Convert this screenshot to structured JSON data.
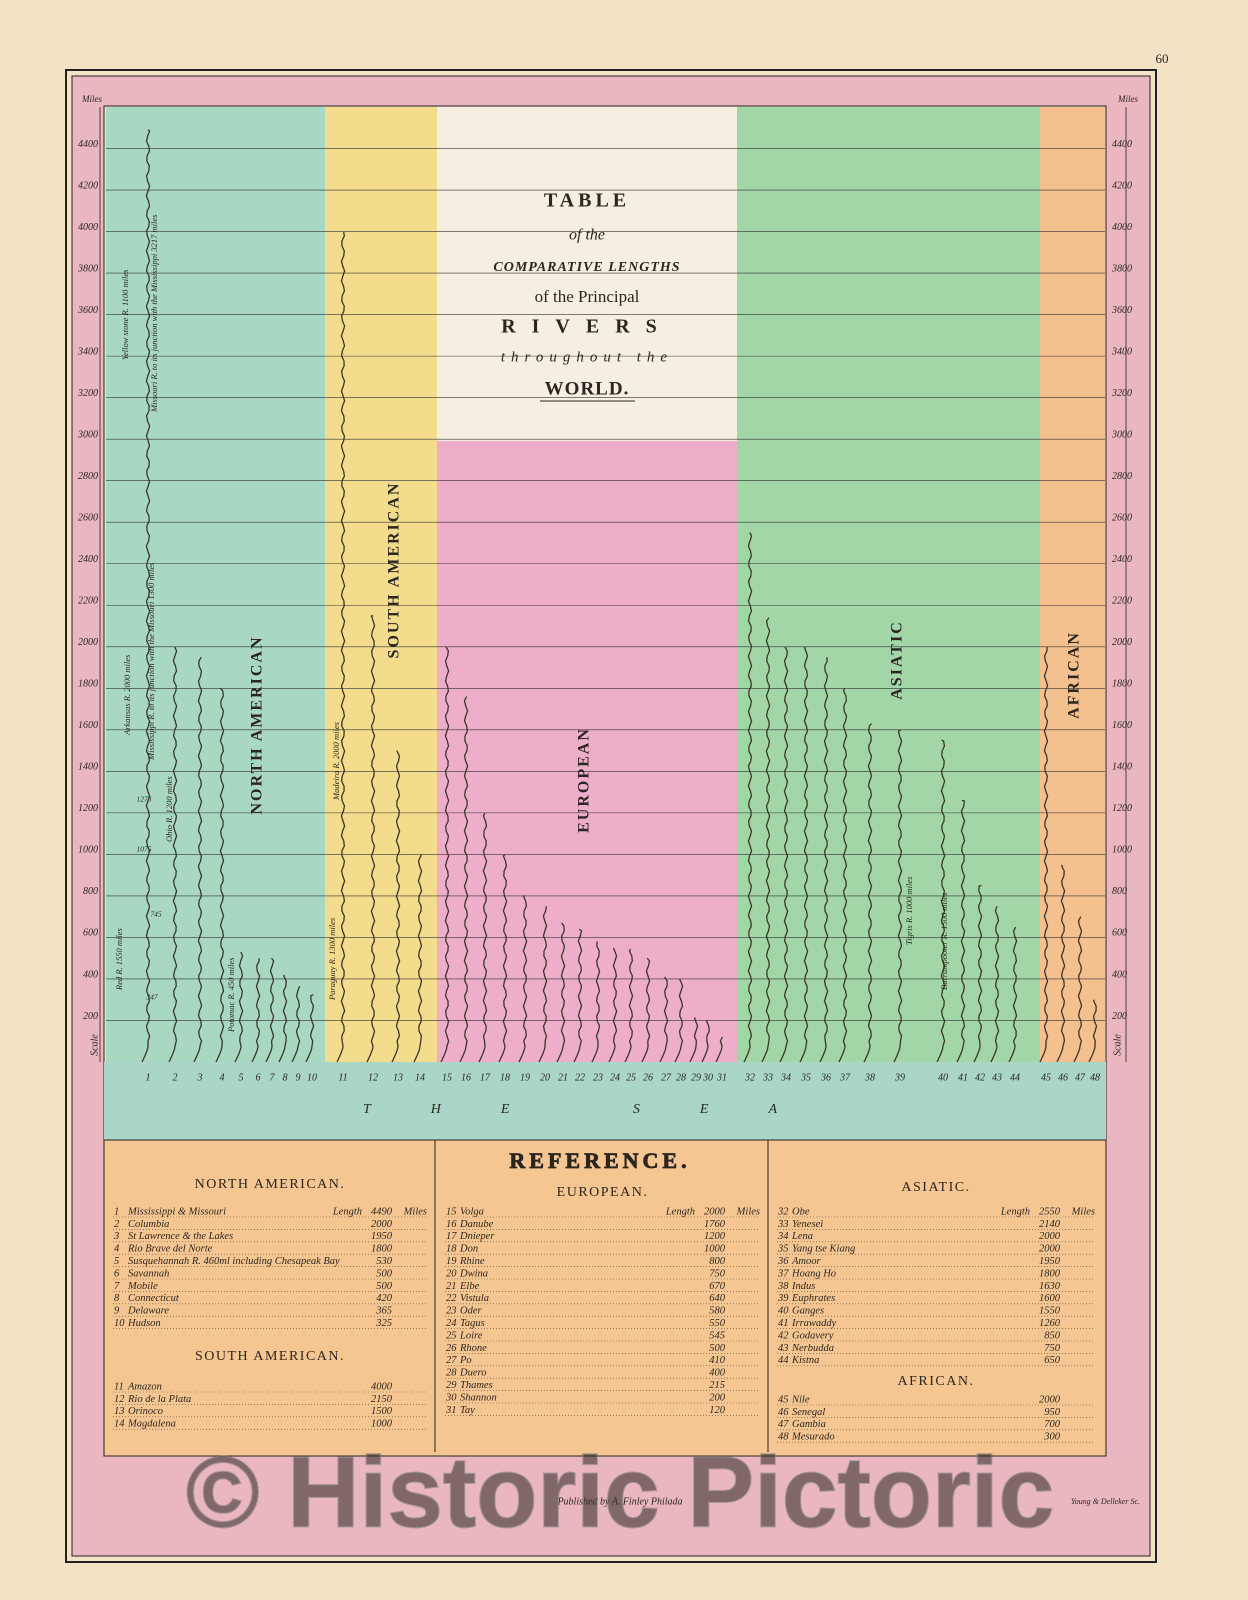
{
  "page_number": "60",
  "chart_data": {
    "type": "river",
    "title": [
      "TABLE",
      "of the",
      "COMPARATIVE LENGTHS",
      "of the Principal",
      "RIVERS",
      "throughout the",
      "WORLD."
    ],
    "y_unit": "Miles",
    "scale_label": "Scale",
    "sea_label": "THE SEA",
    "ylim": [
      0,
      4600
    ],
    "yticks": [
      200,
      400,
      600,
      800,
      1000,
      1200,
      1400,
      1600,
      1800,
      2000,
      2200,
      2400,
      2600,
      2800,
      3000,
      3200,
      3400,
      3600,
      3800,
      4000,
      4200,
      4400
    ],
    "grid": true,
    "series": [
      {
        "name": "NORTH AMERICAN",
        "reference_heading": "NORTH AMERICAN.",
        "color": "#a8d8c2",
        "categories": [
          "1",
          "2",
          "3",
          "4",
          "5",
          "6",
          "7",
          "8",
          "9",
          "10"
        ],
        "names": [
          "Mississippi & Missouri",
          "Columbia",
          "St Lawrence & the Lakes",
          "Rio Brave del Norte",
          "Susquehannah R. 460ml including Chesapeak Bay",
          "Savannah",
          "Mobile",
          "Connecticut",
          "Delaware",
          "Hudson"
        ],
        "values": [
          4490,
          2000,
          1950,
          1800,
          530,
          500,
          500,
          420,
          365,
          325
        ]
      },
      {
        "name": "SOUTH AMERICAN",
        "reference_heading": "SOUTH AMERICAN.",
        "color": "#f3dc8c",
        "categories": [
          "11",
          "12",
          "13",
          "14"
        ],
        "names": [
          "Amazon",
          "Rio de la Plata",
          "Orinoco",
          "Magdalena"
        ],
        "values": [
          4000,
          2150,
          1500,
          1000
        ]
      },
      {
        "name": "EUROPEAN",
        "reference_heading": "EUROPEAN.",
        "color": "#eeadc9",
        "categories": [
          "15",
          "16",
          "17",
          "18",
          "19",
          "20",
          "21",
          "22",
          "23",
          "24",
          "25",
          "26",
          "27",
          "28",
          "29",
          "30",
          "31"
        ],
        "names": [
          "Volga",
          "Danube",
          "Dnieper",
          "Don",
          "Rhine",
          "Dwina",
          "Elbe",
          "Vistula",
          "Oder",
          "Tagus",
          "Loire",
          "Rhone",
          "Po",
          "Duero",
          "Thames",
          "Shannon",
          "Tay"
        ],
        "values": [
          2000,
          1760,
          1200,
          1000,
          800,
          750,
          670,
          640,
          580,
          550,
          545,
          500,
          410,
          400,
          215,
          200,
          120
        ]
      },
      {
        "name": "ASIATIC",
        "reference_heading": "ASIATIC.",
        "color": "#a2d6a6",
        "categories": [
          "32",
          "33",
          "34",
          "35",
          "36",
          "37",
          "38",
          "39",
          "40",
          "41",
          "42",
          "43",
          "44"
        ],
        "names": [
          "Obe",
          "Yenesei",
          "Lena",
          "Yang tse Kiang",
          "Amoor",
          "Hoang Ho",
          "Indus",
          "Euphrates",
          "Ganges",
          "Irrawaddy",
          "Godavery",
          "Nerbudda",
          "Kistna"
        ],
        "values": [
          2550,
          2140,
          2000,
          2000,
          1950,
          1800,
          1630,
          1600,
          1550,
          1260,
          850,
          750,
          650
        ]
      },
      {
        "name": "AFRICAN",
        "reference_heading": "AFRICAN.",
        "color": "#f4c08e",
        "categories": [
          "45",
          "46",
          "47",
          "48"
        ],
        "names": [
          "Nile",
          "Senegal",
          "Gambia",
          "Mesurado"
        ],
        "values": [
          2000,
          950,
          700,
          300
        ]
      }
    ],
    "annotations": [
      "Red R. 1550 miles",
      "Arkansas R. 2000 miles",
      "Yellow stone R. 1100 miles",
      "Missouri R. to its junction with the Mississippi 3217 miles",
      "Mississippi R. to its junction with the Missouri 1300 miles",
      "Ohio R. 1200 miles",
      "Potomac R. 450 miles",
      "Madeira R. 2000 miles",
      "Paraguay R. 1300 miles",
      "Tigris R. 1000 miles",
      "Burrampooter R. 1500 miles",
      "1273",
      "1075",
      "745",
      "347"
    ]
  },
  "reference": {
    "title": "REFERENCE.",
    "length_label": "Length",
    "unit_label": "Miles"
  },
  "footer": {
    "publisher": "Published by A. Finley Philada",
    "engraver": "Young & Delleker Sc."
  },
  "watermark": "© Historic Pictoric"
}
